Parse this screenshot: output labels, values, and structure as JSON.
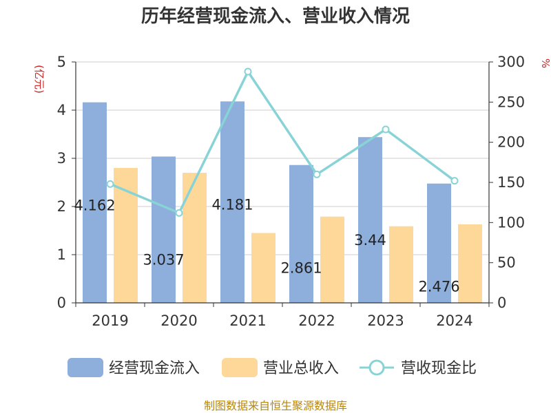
{
  "chart_data": {
    "type": "bar",
    "title": "历年经营现金流入、营业收入情况",
    "categories": [
      "2019",
      "2020",
      "2021",
      "2022",
      "2023",
      "2024"
    ],
    "series": [
      {
        "name": "经营现金流入",
        "type": "bar",
        "axis": "left",
        "color": "#8eaedb",
        "values": [
          4.162,
          3.037,
          4.181,
          2.861,
          3.44,
          2.476
        ]
      },
      {
        "name": "营业总收入",
        "type": "bar",
        "axis": "left",
        "color": "#fed898",
        "values": [
          2.8,
          2.7,
          1.45,
          1.79,
          1.59,
          1.63
        ]
      },
      {
        "name": "营收现金比",
        "type": "line",
        "axis": "right",
        "color": "#88d3d6",
        "values": [
          148,
          112,
          288,
          160,
          216,
          152
        ]
      }
    ],
    "data_labels": [
      "4.162",
      "3.037",
      "4.181",
      "2.861",
      "3.44",
      "2.476"
    ],
    "y_left": {
      "label": "(亿元)",
      "min": 0,
      "max": 5,
      "ticks": [
        0,
        1,
        2,
        3,
        4,
        5
      ]
    },
    "y_right": {
      "label": "%",
      "min": 0,
      "max": 300,
      "ticks": [
        0,
        50,
        100,
        150,
        200,
        250,
        300
      ]
    },
    "grid": true,
    "legend_position": "bottom",
    "footer": "制图数据来自恒生聚源数据库",
    "colors": {
      "unit_label": "#cc2222",
      "footer": "#b8860b",
      "axis": "#333333",
      "grid": "#cccccc"
    }
  }
}
